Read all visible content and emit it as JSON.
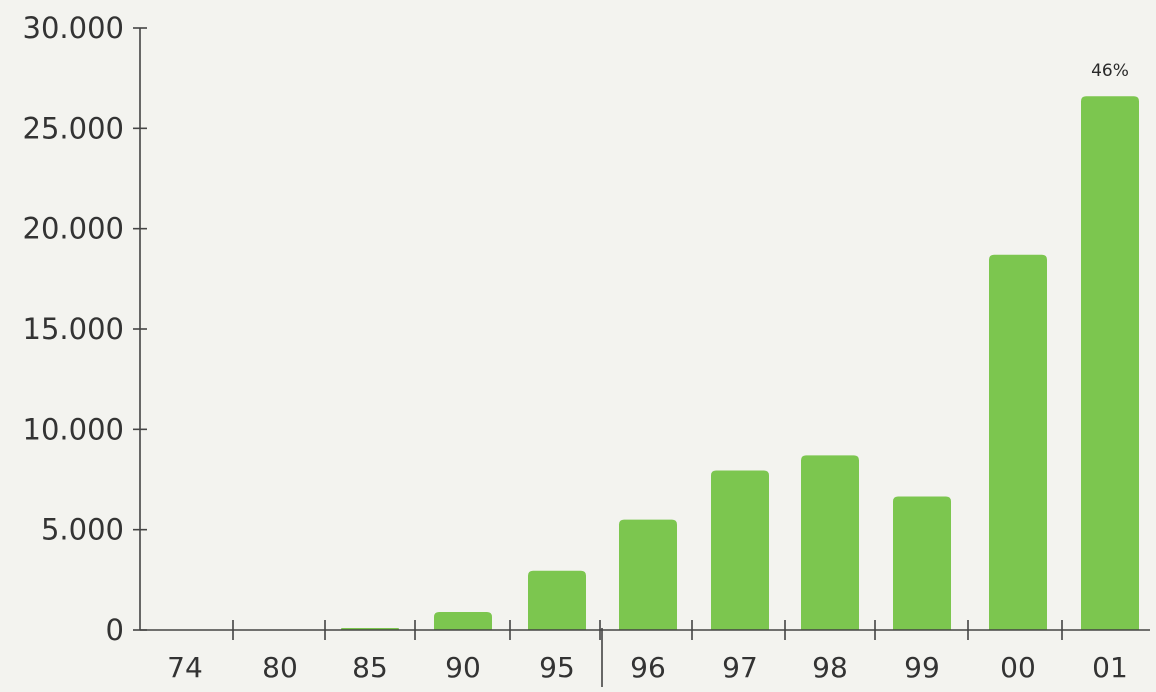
{
  "chart_data": {
    "type": "bar",
    "title": "",
    "xlabel": "",
    "ylabel": "",
    "categories": [
      "74",
      "80",
      "85",
      "90",
      "95",
      "96",
      "97",
      "98",
      "99",
      "00",
      "01"
    ],
    "values": [
      0,
      0,
      100,
      900,
      2950,
      5500,
      7950,
      8700,
      6650,
      18700,
      26600
    ],
    "ylim": [
      0,
      30000
    ],
    "yticks": [
      0,
      5000,
      10000,
      15000,
      20000,
      25000,
      30000
    ],
    "ytick_labels": [
      "0",
      "5.000",
      "10.000",
      "15.000",
      "20.000",
      "25.000",
      "30.000"
    ],
    "annotations": [
      {
        "category": "01",
        "text": "46%"
      }
    ],
    "grid": false,
    "legend": "none",
    "colors": {
      "bar": "#7cc64f",
      "axis": "#444444",
      "background": "#f3f3ef"
    }
  }
}
